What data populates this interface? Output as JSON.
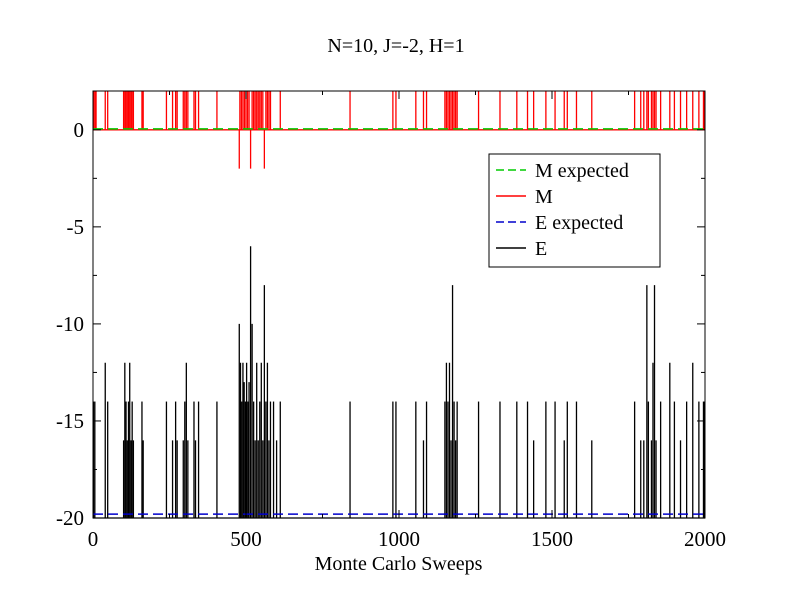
{
  "chart_data": {
    "type": "line",
    "title": "N=10, J=-2, H=1",
    "xlabel": "Monte Carlo Sweeps",
    "ylabel": "",
    "xlim": [
      0,
      2000
    ],
    "ylim": [
      -20,
      2
    ],
    "x_ticks": [
      0,
      500,
      1000,
      1500,
      2000
    ],
    "x_tick_labels": [
      "0",
      "500",
      "1000",
      "1500",
      "2000"
    ],
    "y_ticks": [
      0,
      -5,
      -10,
      -15,
      -20
    ],
    "y_tick_labels": [
      "0",
      "-5",
      "-10",
      "-15",
      "-20"
    ],
    "grid": false,
    "legend_position": "upper-right",
    "series": [
      {
        "name": "M expected",
        "style": "dashed",
        "color": "#00cc00",
        "x": [
          0,
          2000
        ],
        "y": [
          0.05,
          0.05
        ]
      },
      {
        "name": "M",
        "style": "solid",
        "color": "#ff0000",
        "spikes": [
          {
            "x": 2,
            "y": 2
          },
          {
            "x": 6,
            "y": 2
          },
          {
            "x": 10,
            "y": 2
          },
          {
            "x": 40,
            "y": 2
          },
          {
            "x": 48,
            "y": 2
          },
          {
            "x": 100,
            "y": 2
          },
          {
            "x": 104,
            "y": 2
          },
          {
            "x": 108,
            "y": 2
          },
          {
            "x": 112,
            "y": 2
          },
          {
            "x": 116,
            "y": 2
          },
          {
            "x": 120,
            "y": 2
          },
          {
            "x": 124,
            "y": 2
          },
          {
            "x": 128,
            "y": 2
          },
          {
            "x": 132,
            "y": 2
          },
          {
            "x": 160,
            "y": 2
          },
          {
            "x": 164,
            "y": 2
          },
          {
            "x": 240,
            "y": 2
          },
          {
            "x": 260,
            "y": 2
          },
          {
            "x": 270,
            "y": 2
          },
          {
            "x": 275,
            "y": 2
          },
          {
            "x": 295,
            "y": 2
          },
          {
            "x": 300,
            "y": 2
          },
          {
            "x": 305,
            "y": 2
          },
          {
            "x": 310,
            "y": 2
          },
          {
            "x": 330,
            "y": 2
          },
          {
            "x": 335,
            "y": 2
          },
          {
            "x": 345,
            "y": 2
          },
          {
            "x": 405,
            "y": 2
          },
          {
            "x": 478,
            "y": -2
          },
          {
            "x": 480,
            "y": 2
          },
          {
            "x": 485,
            "y": 2
          },
          {
            "x": 490,
            "y": 2
          },
          {
            "x": 495,
            "y": 2
          },
          {
            "x": 500,
            "y": 2
          },
          {
            "x": 505,
            "y": 2
          },
          {
            "x": 510,
            "y": 2
          },
          {
            "x": 515,
            "y": -2
          },
          {
            "x": 520,
            "y": 2
          },
          {
            "x": 525,
            "y": 2
          },
          {
            "x": 530,
            "y": 2
          },
          {
            "x": 535,
            "y": 2
          },
          {
            "x": 540,
            "y": 2
          },
          {
            "x": 545,
            "y": 2
          },
          {
            "x": 550,
            "y": 2
          },
          {
            "x": 555,
            "y": 2
          },
          {
            "x": 560,
            "y": -2
          },
          {
            "x": 565,
            "y": 2
          },
          {
            "x": 570,
            "y": 2
          },
          {
            "x": 575,
            "y": 2
          },
          {
            "x": 580,
            "y": 2
          },
          {
            "x": 612,
            "y": 2
          },
          {
            "x": 840,
            "y": 2
          },
          {
            "x": 980,
            "y": 2
          },
          {
            "x": 990,
            "y": 2
          },
          {
            "x": 1055,
            "y": 2
          },
          {
            "x": 1080,
            "y": 2
          },
          {
            "x": 1090,
            "y": 2
          },
          {
            "x": 1150,
            "y": 2
          },
          {
            "x": 1155,
            "y": 2
          },
          {
            "x": 1160,
            "y": 2
          },
          {
            "x": 1165,
            "y": 2
          },
          {
            "x": 1170,
            "y": 2
          },
          {
            "x": 1175,
            "y": 2
          },
          {
            "x": 1180,
            "y": 2
          },
          {
            "x": 1185,
            "y": 2
          },
          {
            "x": 1190,
            "y": 2
          },
          {
            "x": 1260,
            "y": 2
          },
          {
            "x": 1330,
            "y": 2
          },
          {
            "x": 1385,
            "y": 2
          },
          {
            "x": 1420,
            "y": 2
          },
          {
            "x": 1440,
            "y": 2
          },
          {
            "x": 1480,
            "y": 2
          },
          {
            "x": 1510,
            "y": 2
          },
          {
            "x": 1540,
            "y": 2
          },
          {
            "x": 1550,
            "y": 2
          },
          {
            "x": 1580,
            "y": 2
          },
          {
            "x": 1630,
            "y": 2
          },
          {
            "x": 1770,
            "y": 2
          },
          {
            "x": 1790,
            "y": 2
          },
          {
            "x": 1800,
            "y": 2
          },
          {
            "x": 1810,
            "y": 2
          },
          {
            "x": 1815,
            "y": 2
          },
          {
            "x": 1825,
            "y": 2
          },
          {
            "x": 1830,
            "y": 2
          },
          {
            "x": 1835,
            "y": 2
          },
          {
            "x": 1840,
            "y": 2
          },
          {
            "x": 1855,
            "y": 2
          },
          {
            "x": 1885,
            "y": 2
          },
          {
            "x": 1900,
            "y": 2
          },
          {
            "x": 1920,
            "y": 2
          },
          {
            "x": 1940,
            "y": 2
          },
          {
            "x": 1960,
            "y": 2
          },
          {
            "x": 1980,
            "y": 2
          },
          {
            "x": 1995,
            "y": 2
          },
          {
            "x": 1998,
            "y": 2
          }
        ]
      },
      {
        "name": "E expected",
        "style": "dashed",
        "color": "#0000cc",
        "x": [
          0,
          2000
        ],
        "y": [
          -19.8,
          -19.8
        ]
      },
      {
        "name": "E",
        "style": "solid",
        "color": "#000000",
        "baseline": -20,
        "spikes": [
          {
            "x": 2,
            "y": -14
          },
          {
            "x": 6,
            "y": -14
          },
          {
            "x": 40,
            "y": -12
          },
          {
            "x": 48,
            "y": -14
          },
          {
            "x": 100,
            "y": -16
          },
          {
            "x": 104,
            "y": -12
          },
          {
            "x": 108,
            "y": -14
          },
          {
            "x": 112,
            "y": -16
          },
          {
            "x": 116,
            "y": -14
          },
          {
            "x": 120,
            "y": -12
          },
          {
            "x": 124,
            "y": -16
          },
          {
            "x": 128,
            "y": -14
          },
          {
            "x": 132,
            "y": -16
          },
          {
            "x": 160,
            "y": -14
          },
          {
            "x": 164,
            "y": -16
          },
          {
            "x": 240,
            "y": -14
          },
          {
            "x": 260,
            "y": -16
          },
          {
            "x": 270,
            "y": -14
          },
          {
            "x": 275,
            "y": -16
          },
          {
            "x": 295,
            "y": -16
          },
          {
            "x": 300,
            "y": -14
          },
          {
            "x": 305,
            "y": -12
          },
          {
            "x": 310,
            "y": -16
          },
          {
            "x": 330,
            "y": -14
          },
          {
            "x": 335,
            "y": -16
          },
          {
            "x": 345,
            "y": -14
          },
          {
            "x": 405,
            "y": -14
          },
          {
            "x": 478,
            "y": -10
          },
          {
            "x": 482,
            "y": -12
          },
          {
            "x": 486,
            "y": -14
          },
          {
            "x": 490,
            "y": -12
          },
          {
            "x": 494,
            "y": -13
          },
          {
            "x": 498,
            "y": -14
          },
          {
            "x": 502,
            "y": -12
          },
          {
            "x": 506,
            "y": -14
          },
          {
            "x": 510,
            "y": -13
          },
          {
            "x": 515,
            "y": -6
          },
          {
            "x": 520,
            "y": -10
          },
          {
            "x": 525,
            "y": -14
          },
          {
            "x": 530,
            "y": -16
          },
          {
            "x": 535,
            "y": -12
          },
          {
            "x": 540,
            "y": -16
          },
          {
            "x": 545,
            "y": -14
          },
          {
            "x": 550,
            "y": -12
          },
          {
            "x": 555,
            "y": -16
          },
          {
            "x": 560,
            "y": -8
          },
          {
            "x": 565,
            "y": -14
          },
          {
            "x": 570,
            "y": -12
          },
          {
            "x": 575,
            "y": -16
          },
          {
            "x": 580,
            "y": -14
          },
          {
            "x": 590,
            "y": -14
          },
          {
            "x": 600,
            "y": -16
          },
          {
            "x": 612,
            "y": -14
          },
          {
            "x": 840,
            "y": -14
          },
          {
            "x": 980,
            "y": -14
          },
          {
            "x": 990,
            "y": -14
          },
          {
            "x": 1055,
            "y": -14
          },
          {
            "x": 1080,
            "y": -16
          },
          {
            "x": 1090,
            "y": -14
          },
          {
            "x": 1150,
            "y": -14
          },
          {
            "x": 1155,
            "y": -12
          },
          {
            "x": 1160,
            "y": -14
          },
          {
            "x": 1165,
            "y": -12
          },
          {
            "x": 1170,
            "y": -16
          },
          {
            "x": 1175,
            "y": -8
          },
          {
            "x": 1180,
            "y": -14
          },
          {
            "x": 1185,
            "y": -16
          },
          {
            "x": 1190,
            "y": -14
          },
          {
            "x": 1260,
            "y": -14
          },
          {
            "x": 1330,
            "y": -14
          },
          {
            "x": 1385,
            "y": -14
          },
          {
            "x": 1420,
            "y": -14
          },
          {
            "x": 1440,
            "y": -16
          },
          {
            "x": 1480,
            "y": -14
          },
          {
            "x": 1510,
            "y": -14
          },
          {
            "x": 1540,
            "y": -16
          },
          {
            "x": 1550,
            "y": -14
          },
          {
            "x": 1580,
            "y": -14
          },
          {
            "x": 1630,
            "y": -16
          },
          {
            "x": 1770,
            "y": -14
          },
          {
            "x": 1790,
            "y": -16
          },
          {
            "x": 1800,
            "y": -16
          },
          {
            "x": 1810,
            "y": -8
          },
          {
            "x": 1815,
            "y": -14
          },
          {
            "x": 1825,
            "y": -16
          },
          {
            "x": 1830,
            "y": -12
          },
          {
            "x": 1835,
            "y": -8
          },
          {
            "x": 1840,
            "y": -16
          },
          {
            "x": 1855,
            "y": -14
          },
          {
            "x": 1885,
            "y": -12
          },
          {
            "x": 1900,
            "y": -14
          },
          {
            "x": 1920,
            "y": -16
          },
          {
            "x": 1940,
            "y": -14
          },
          {
            "x": 1960,
            "y": -12
          },
          {
            "x": 1980,
            "y": -14
          },
          {
            "x": 1995,
            "y": -14
          },
          {
            "x": 1998,
            "y": -14
          }
        ]
      }
    ]
  }
}
